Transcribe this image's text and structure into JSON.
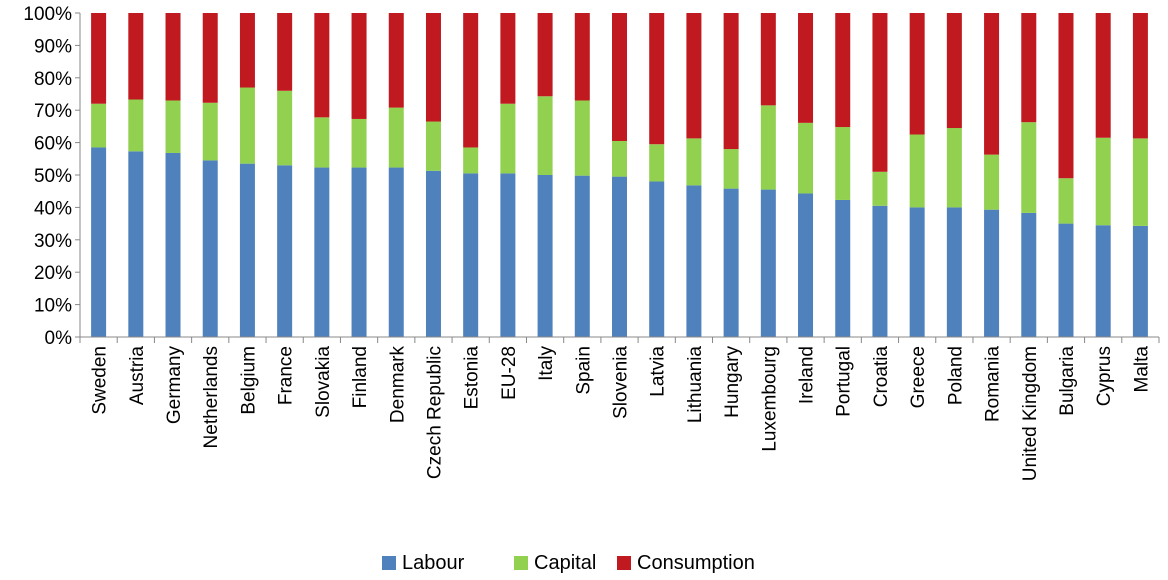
{
  "chart_data": {
    "type": "bar",
    "stacked": true,
    "categories": [
      "Sweden",
      "Austria",
      "Germany",
      "Netherlands",
      "Belgium",
      "France",
      "Slovakia",
      "Finland",
      "Denmark",
      "Czech Republic",
      "Estonia",
      "EU-28",
      "Italy",
      "Spain",
      "Slovenia",
      "Latvia",
      "Lithuania",
      "Hungary",
      "Luxembourg",
      "Ireland",
      "Portugal",
      "Croatia",
      "Greece",
      "Poland",
      "Romania",
      "United Kingdom",
      "Bulgaria",
      "Cyprus",
      "Malta"
    ],
    "series": [
      {
        "name": "Labour",
        "color": "#4F81BD",
        "values": [
          58.5,
          57.3,
          56.8,
          54.5,
          53.5,
          53,
          52.3,
          52.3,
          52.3,
          51.3,
          50.5,
          50.5,
          50,
          49.8,
          49.5,
          48,
          46.8,
          45.8,
          45.5,
          44.3,
          42.3,
          40.5,
          40,
          40,
          39.3,
          38.3,
          35,
          34.5,
          34.3
        ]
      },
      {
        "name": "Capital",
        "color": "#92D050",
        "values": [
          13.5,
          16,
          16.2,
          17.8,
          23.5,
          23,
          15.5,
          15,
          18.5,
          15.2,
          8,
          21.5,
          24.3,
          23.2,
          11,
          11.5,
          14.5,
          12.2,
          26,
          21.8,
          22.5,
          10.5,
          22.5,
          24.5,
          17,
          28,
          14,
          27,
          27
        ]
      },
      {
        "name": "Consumption",
        "color": "#C0191F",
        "values": [
          28,
          26.7,
          27,
          27.7,
          23,
          24,
          32.2,
          32.7,
          29.2,
          33.5,
          41.5,
          28,
          25.7,
          27,
          39.5,
          40.5,
          38.7,
          42,
          28.5,
          33.9,
          35.2,
          49,
          37.5,
          35.5,
          43.7,
          33.7,
          51,
          38.5,
          38.7
        ]
      }
    ],
    "yticks": [
      "0%",
      "10%",
      "20%",
      "30%",
      "40%",
      "50%",
      "60%",
      "70%",
      "80%",
      "90%",
      "100%"
    ],
    "ylim": [
      0,
      100
    ],
    "legend_position": "bottom",
    "grid": false
  }
}
